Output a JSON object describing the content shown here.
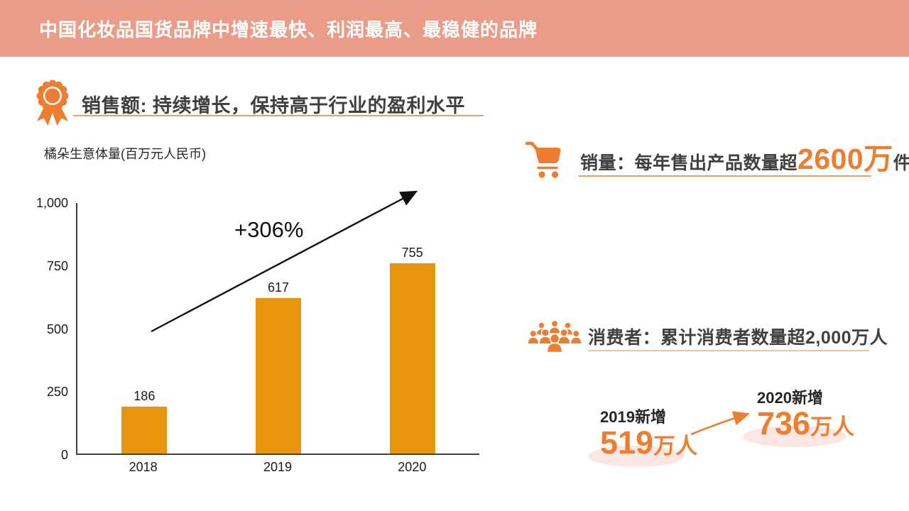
{
  "header": {
    "title": "中国化妆品国货品牌中增速最快、利润最高、最稳健的品牌",
    "bg_color": "#EA9C89",
    "text_color": "#FFFFFF"
  },
  "sales_section": {
    "icon": "medal-icon",
    "heading": "销售额: 持续增长，保持高于行业的盈利水平"
  },
  "chart_data": {
    "type": "bar",
    "title": "橘朵生意体量(百万元人民币)",
    "categories": [
      "2018",
      "2019",
      "2020"
    ],
    "values": [
      186,
      617,
      755
    ],
    "data_labels": [
      "186",
      "617",
      "755"
    ],
    "ylim": [
      0,
      1000
    ],
    "yticks": [
      0,
      250,
      500,
      750,
      1000
    ],
    "ytick_labels": [
      "0",
      "250",
      "500",
      "750",
      "1,000"
    ],
    "bar_color": "#E8940C",
    "grid": false,
    "legend": "none",
    "annotation": "+306%",
    "annotation_meaning": "growth from 2018 to 2020"
  },
  "sales_volume": {
    "icon": "cart-icon",
    "text_prefix": "销量：每年售出产品数量超",
    "highlight": "2600万",
    "text_suffix": "件"
  },
  "consumers": {
    "icon": "people-icon",
    "text": "消费者：累计消费者数量超2,000万人",
    "added_2019": {
      "label": "2019新增",
      "value": "519",
      "unit": "万人"
    },
    "added_2020": {
      "label": "2020新增",
      "value": "736",
      "unit": "万人"
    }
  },
  "colors": {
    "header_bg": "#EA9C89",
    "accent_orange": "#ED7D31",
    "bar_orange": "#E8940C",
    "heading_text": "#404040",
    "halo_pink": "#FBE6E1"
  }
}
